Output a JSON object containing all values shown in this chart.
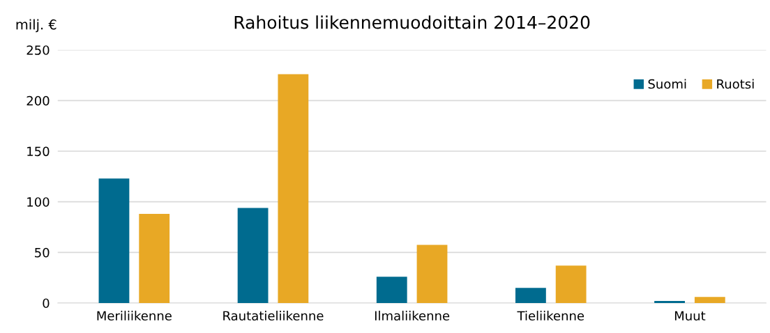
{
  "chart_data": {
    "type": "bar",
    "title": "Rahoitus liikennemuodoittain 2014–2020",
    "ylabel": "milj. €",
    "categories": [
      "Meriliikenne",
      "Rautatieliikenne",
      "Ilmaliikenne",
      "Tieliikenne",
      "Muut"
    ],
    "series": [
      {
        "name": "Suomi",
        "color": "#006b8f",
        "values": [
          123,
          94,
          26,
          15,
          2
        ]
      },
      {
        "name": "Ruotsi",
        "color": "#e8a825",
        "values": [
          88,
          226,
          57.5,
          37,
          6
        ]
      }
    ],
    "ylim": [
      0,
      250
    ],
    "yticks": [
      0,
      50,
      100,
      150,
      200,
      250
    ],
    "grid": "y",
    "legend": "top right"
  }
}
